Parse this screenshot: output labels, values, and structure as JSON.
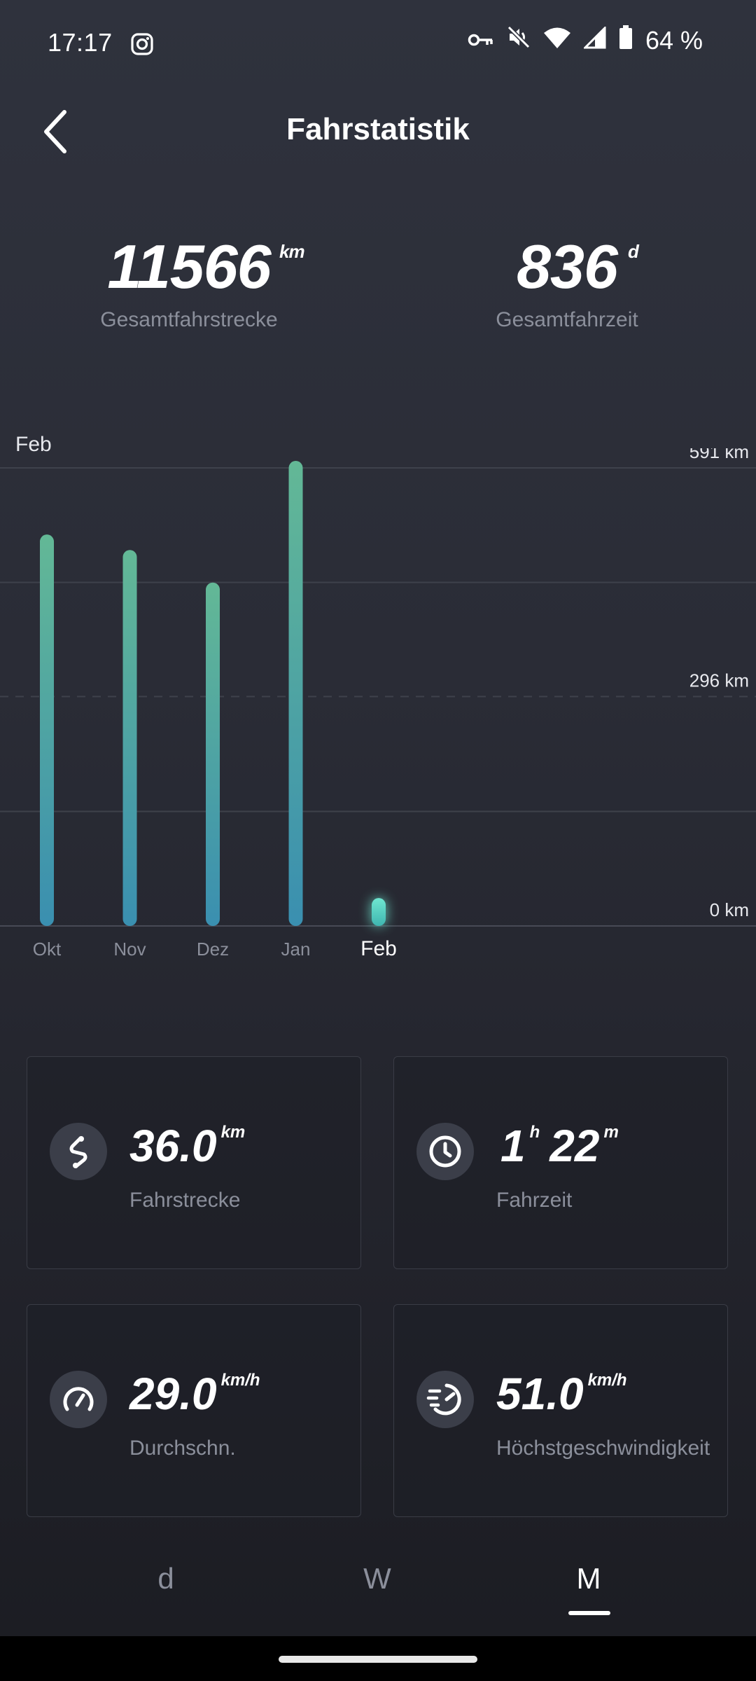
{
  "status_bar": {
    "time": "17:17",
    "battery": "64 %",
    "icons": [
      "instagram-icon",
      "key-icon",
      "mute-icon",
      "wifi-icon",
      "signal-icon",
      "battery-icon"
    ]
  },
  "header": {
    "title": "Fahrstatistik",
    "back_icon": "chevron-left-icon"
  },
  "totals": {
    "distance": {
      "value": "11566",
      "unit": "km",
      "label": "Gesamtfahrstrecke"
    },
    "time": {
      "value": "836",
      "unit": "d",
      "label": "Gesamtfahrzeit"
    }
  },
  "chart_data": {
    "type": "bar",
    "selected_period": "Feb",
    "categories": [
      "Okt",
      "Nov",
      "Dez",
      "Jan",
      "Feb"
    ],
    "values": [
      505,
      485,
      443,
      600,
      36
    ],
    "selected_index": 4,
    "ylim": [
      0,
      591
    ],
    "y_tick_labels": [
      "591 km",
      "296 km",
      "0 km"
    ],
    "y_ticks": [
      591,
      296,
      0
    ],
    "grid": true,
    "colors": {
      "bar_top": "#63b896",
      "bar_bottom": "#3a8fb0",
      "selected": "#6fe6d0",
      "grid": "#3e414b"
    }
  },
  "cards": [
    {
      "icon": "route-icon",
      "value": "36.0",
      "unit": "km",
      "label": "Fahrstrecke"
    },
    {
      "icon": "clock-icon",
      "value_h": "1",
      "unit_h": "h",
      "value_m": "22",
      "unit_m": "m",
      "label": "Fahrzeit"
    },
    {
      "icon": "speedometer-icon",
      "value": "29.0",
      "unit": "km/h",
      "label": "Durchschn."
    },
    {
      "icon": "fast-speed-icon",
      "value": "51.0",
      "unit": "km/h",
      "label": "Höchstgeschwindigkeit"
    }
  ],
  "tabs": [
    {
      "label": "d",
      "active": false
    },
    {
      "label": "W",
      "active": false
    },
    {
      "label": "M",
      "active": true
    }
  ]
}
